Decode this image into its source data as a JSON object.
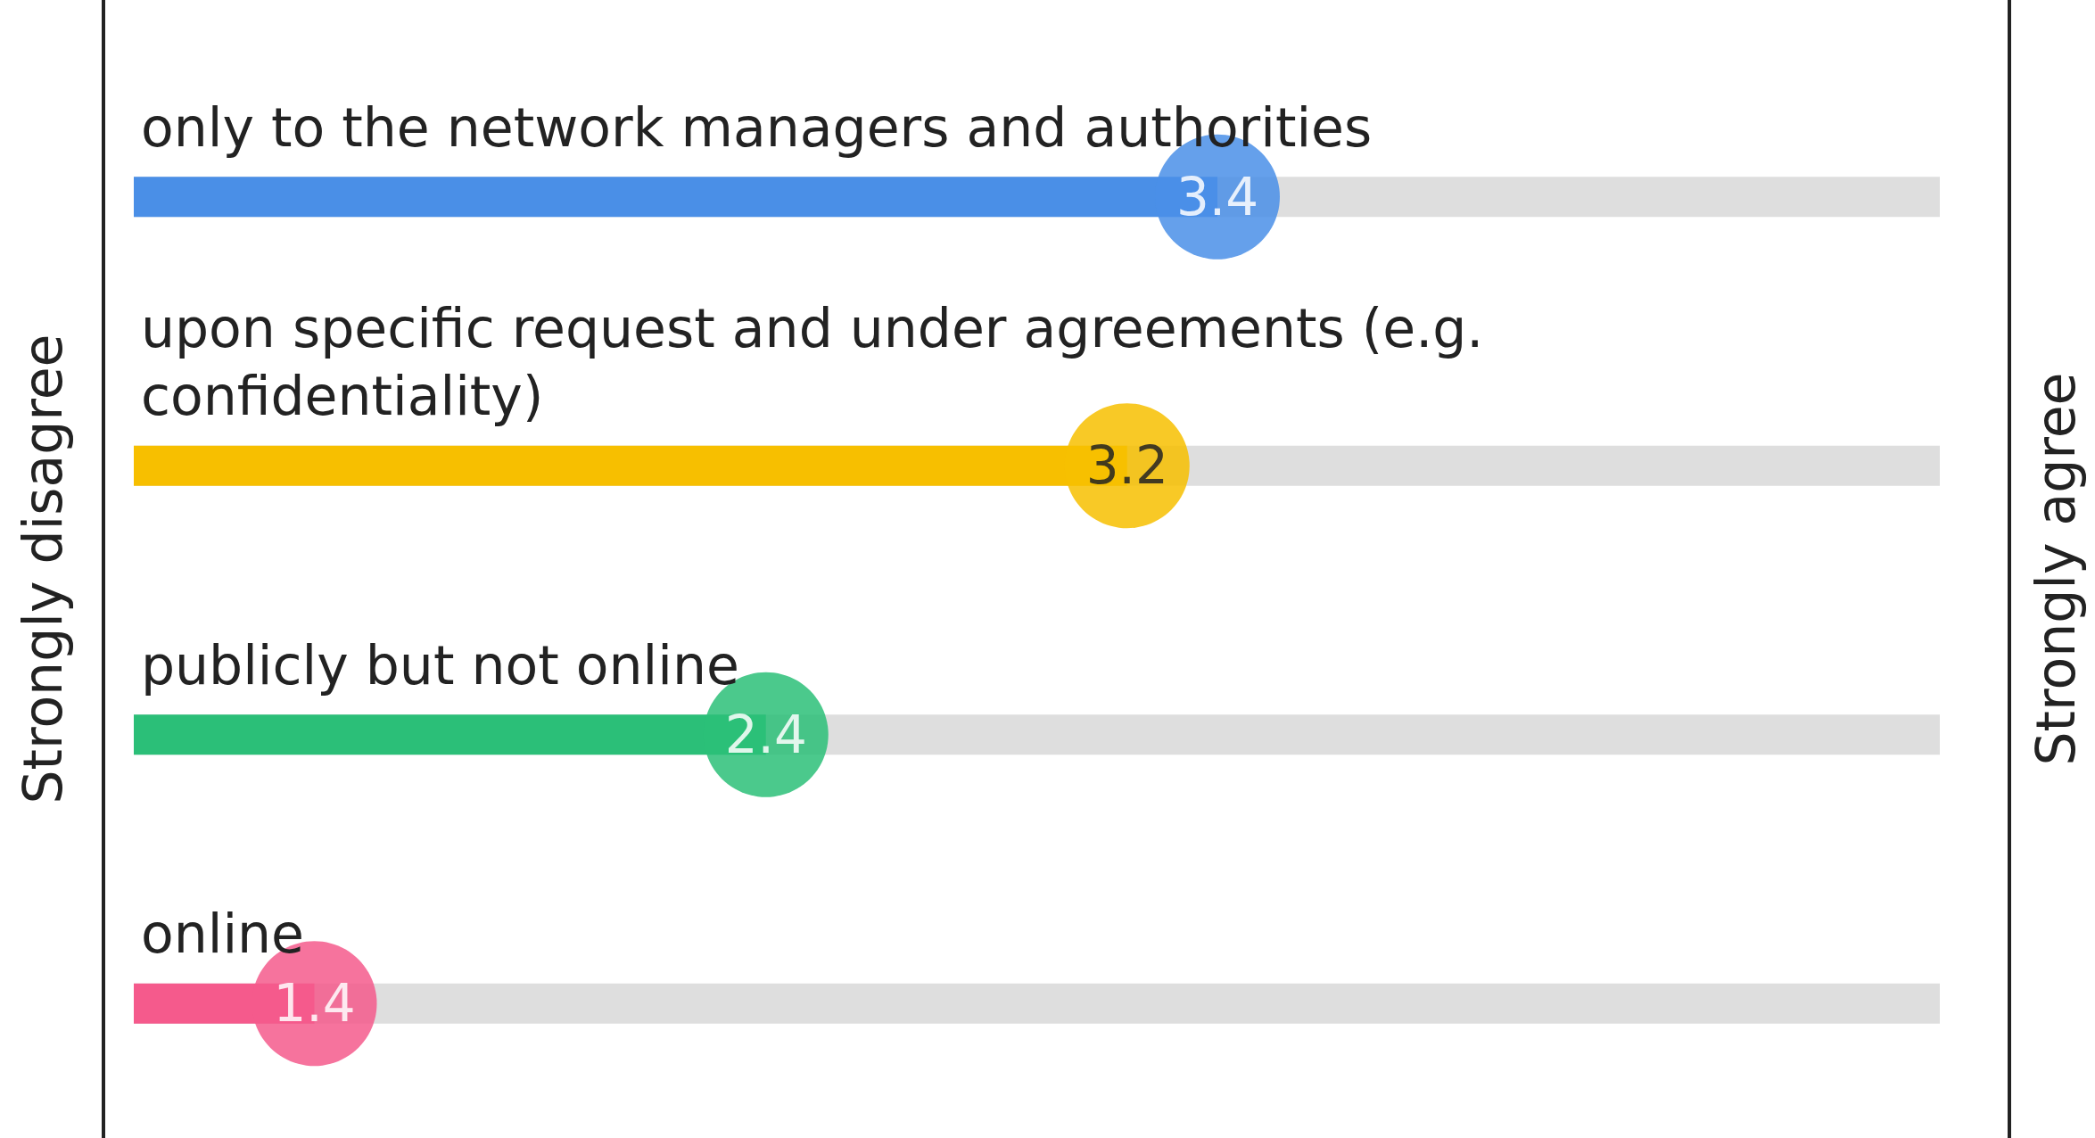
{
  "chart_data": {
    "type": "bar",
    "orientation": "horizontal",
    "categories": [
      "only to the network managers and authorities",
      "upon specific request and under agreements (e.g. confidentiality)",
      "publicly but not online",
      "online"
    ],
    "values": [
      3.4,
      3.2,
      2.4,
      1.4
    ],
    "colors": [
      "#4a8fe7",
      "#f7bf00",
      "#2bbf78",
      "#f55a8c"
    ],
    "xlim": [
      1,
      5
    ],
    "tick_labels": "y",
    "annotations": [
      "Strongly disagree",
      "Strongly agree"
    ],
    "data_labels": true
  }
}
